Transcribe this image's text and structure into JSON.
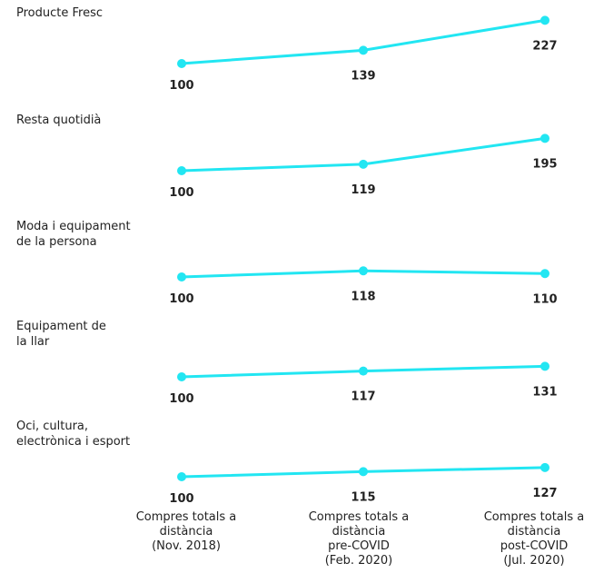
{
  "chart_data": {
    "type": "line",
    "categories": [
      [
        "Compres totals a",
        "distància",
        "(Nov. 2018)"
      ],
      [
        "Compres totals a",
        "distància",
        "pre-COVID",
        "(Feb. 2020)"
      ],
      [
        "Compres totals a",
        "distància",
        "post-COVID",
        "(Jul. 2020)"
      ]
    ],
    "series": [
      {
        "name": [
          "Producte Fresc"
        ],
        "values": [
          100,
          139,
          227
        ]
      },
      {
        "name": [
          "Resta quotidià"
        ],
        "values": [
          100,
          119,
          195
        ]
      },
      {
        "name": [
          "Moda i equipament",
          "de la persona"
        ],
        "values": [
          100,
          118,
          110
        ]
      },
      {
        "name": [
          "Equipament de",
          "la llar"
        ],
        "values": [
          100,
          117,
          131
        ]
      },
      {
        "name": [
          "Oci, cultura,",
          "electrònica i esport"
        ],
        "values": [
          100,
          115,
          127
        ]
      }
    ],
    "grid": false,
    "legend": "none",
    "colors": {
      "line": "#22E6F2",
      "text": "#222222"
    }
  }
}
